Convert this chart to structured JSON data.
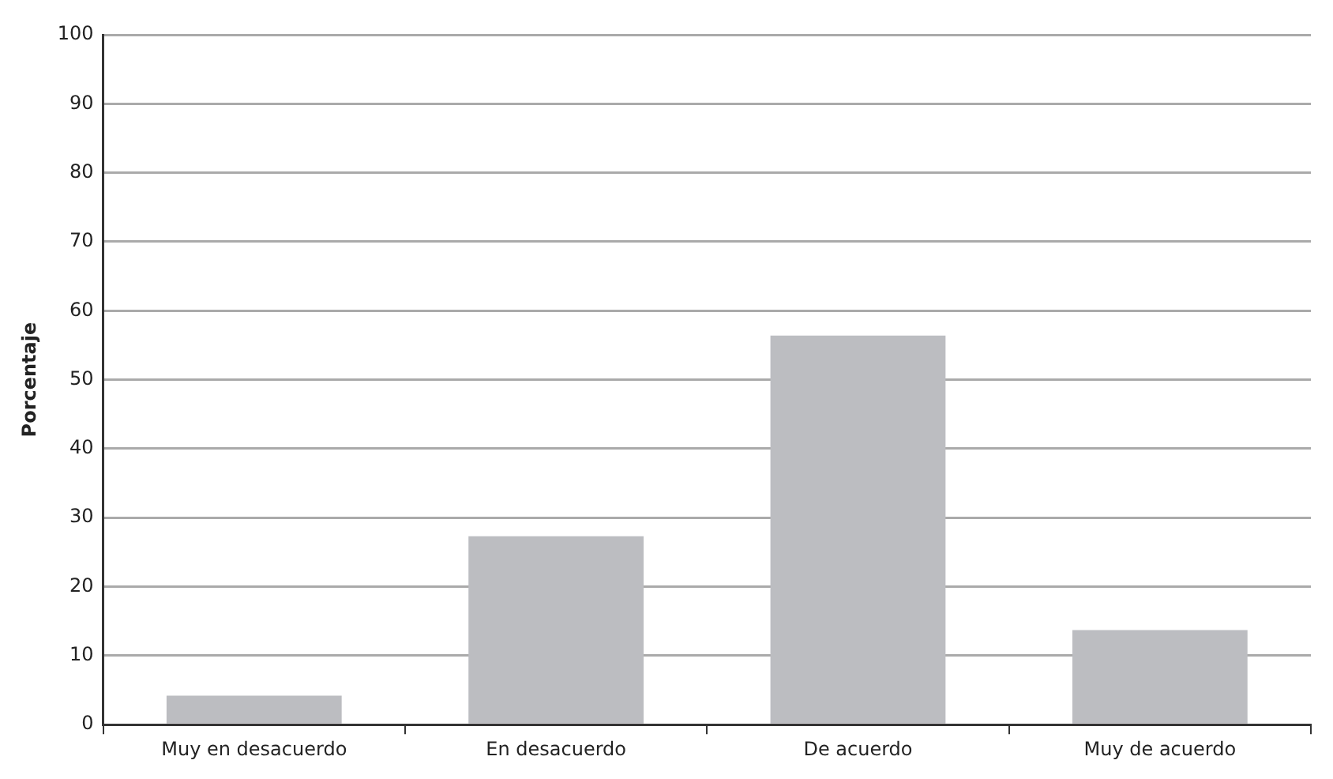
{
  "chart_data": {
    "type": "bar",
    "ylabel": "Porcentaje",
    "categories": [
      "Muy en desacuerdo",
      "En desacuerdo",
      "De acuerdo",
      "Muy de acuerdo"
    ],
    "values": [
      4.2,
      27.3,
      56.4,
      13.7
    ],
    "color": "#bcbdc1",
    "ylim": [
      0,
      100
    ],
    "yticks": [
      0,
      10,
      20,
      30,
      40,
      50,
      60,
      70,
      80,
      90,
      100
    ],
    "grid": "y",
    "legend": false
  }
}
